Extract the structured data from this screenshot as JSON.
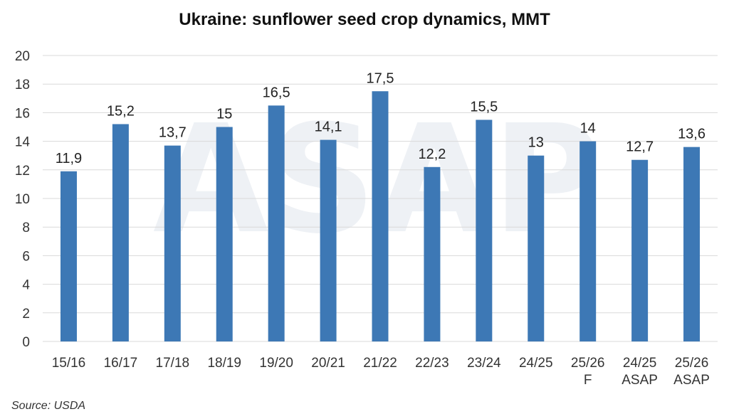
{
  "source": "Source: USDA",
  "watermark_text": "ASAP",
  "colors": {
    "bar": "#3d78b5",
    "grid": "#d9d9d9",
    "axis_text": "#333333",
    "watermark": "#eef1f5"
  },
  "chart_data": {
    "type": "bar",
    "title": "Ukraine: sunflower seed crop dynamics, MMT",
    "xlabel": "",
    "ylabel": "",
    "ylim": [
      0,
      20
    ],
    "yticks": [
      0,
      2,
      4,
      6,
      8,
      10,
      12,
      14,
      16,
      18,
      20
    ],
    "grid": true,
    "categories": [
      [
        "15/16"
      ],
      [
        "16/17"
      ],
      [
        "17/18"
      ],
      [
        "18/19"
      ],
      [
        "19/20"
      ],
      [
        "20/21"
      ],
      [
        "21/22"
      ],
      [
        "22/23"
      ],
      [
        "23/24"
      ],
      [
        "24/25"
      ],
      [
        "25/26",
        "F"
      ],
      [
        "24/25",
        "ASAP"
      ],
      [
        "25/26",
        "ASAP"
      ]
    ],
    "values": [
      11.9,
      15.2,
      13.7,
      15,
      16.5,
      14.1,
      17.5,
      12.2,
      15.5,
      13,
      14,
      12.7,
      13.6
    ],
    "value_labels": [
      "11,9",
      "15,2",
      "13,7",
      "15",
      "16,5",
      "14,1",
      "17,5",
      "12,2",
      "15,5",
      "13",
      "14",
      "12,7",
      "13,6"
    ]
  }
}
